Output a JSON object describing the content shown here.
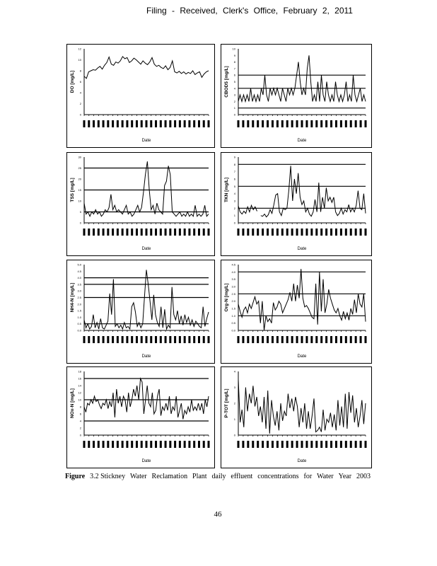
{
  "header": {
    "text": "Filing - Received, Clerk's Office, February 2, 2011"
  },
  "caption": {
    "label": "Figure",
    "words": [
      "3.2 Stickney",
      "Water",
      "Reclamation",
      "Plant",
      "daily",
      "effluent",
      "concentrations",
      "for",
      "Water",
      "Year",
      "2003"
    ]
  },
  "page_number": "46",
  "chart_data": [
    {
      "type": "line",
      "title": "",
      "xlabel": "Date",
      "ylabel": "DO [mg/L]",
      "ylim": [
        0,
        12
      ],
      "yticks": [
        "0",
        "2",
        "4",
        "6",
        "8",
        "10",
        "12"
      ],
      "ref_lines": [],
      "values": [
        7,
        6.6,
        7.8,
        8,
        8.2,
        8.1,
        8.5,
        8.8,
        8.3,
        9,
        9.5,
        10.5,
        9.2,
        9,
        9.6,
        9.4,
        9.8,
        10.6,
        10.2,
        10.4,
        9.5,
        9.8,
        10.3,
        10,
        9.6,
        9.2,
        9.8,
        9.4,
        9.1,
        9.6,
        10.4,
        9.2,
        8.8,
        9,
        8.6,
        8.4,
        8.9,
        8.2,
        8.6,
        9.8,
        7.8,
        7.6,
        7.9,
        7.5,
        7.8,
        7.4,
        7.7,
        7.5,
        8,
        7.3,
        7.6,
        7.8,
        6.8,
        7.4,
        7.8,
        8
      ]
    },
    {
      "type": "line",
      "title": "",
      "xlabel": "Date",
      "ylabel": "CBOD5 [mg/L]",
      "ylim": [
        0,
        10
      ],
      "yticks": [
        "0",
        "1",
        "2",
        "3",
        "4",
        "5",
        "6",
        "7",
        "8",
        "9",
        "10"
      ],
      "ref_lines": [
        1,
        4,
        6
      ],
      "values": [
        2,
        3,
        2,
        3,
        2,
        3,
        2,
        4,
        2,
        3,
        2,
        3,
        2,
        4,
        3,
        6,
        3,
        2,
        4,
        3,
        4,
        3,
        4,
        3,
        2,
        4,
        3,
        2,
        4,
        3,
        4,
        3,
        4,
        6,
        8,
        5,
        3,
        4,
        3,
        7,
        9,
        5,
        2,
        3,
        2,
        5,
        2,
        6,
        3,
        2,
        5,
        3,
        2,
        3,
        2,
        5,
        3,
        2,
        3,
        2,
        3,
        5,
        2,
        3,
        2,
        6,
        3,
        2,
        3,
        4,
        2,
        3,
        2
      ]
    },
    {
      "type": "line",
      "title": "",
      "xlabel": "Date",
      "ylabel": "TSS [mg/L]",
      "ylim": [
        0,
        30
      ],
      "yticks": [
        "0",
        "5",
        "10",
        "15",
        "20",
        "25",
        "30"
      ],
      "ref_lines": [
        5,
        15,
        25
      ],
      "values": [
        9,
        4,
        5,
        3,
        5,
        4,
        6,
        4,
        5,
        3,
        4,
        6,
        5,
        7,
        13,
        6,
        8,
        5,
        6,
        5,
        4,
        6,
        8,
        4,
        5,
        3,
        4,
        6,
        8,
        5,
        7,
        14,
        22,
        28,
        15,
        6,
        8,
        4,
        9,
        6,
        5,
        4,
        17,
        19,
        26,
        22,
        5,
        4,
        3,
        4,
        5,
        3,
        4,
        3,
        5,
        3,
        4,
        3,
        8,
        3,
        4,
        3,
        4,
        8,
        3,
        4
      ]
    },
    {
      "type": "line",
      "title": "",
      "xlabel": "Date",
      "ylabel": "TKN [mg/L]",
      "ylim": [
        0,
        9
      ],
      "yticks": [
        "0",
        "1",
        "2",
        "3",
        "4",
        "5",
        "6",
        "7",
        "8",
        "9"
      ],
      "ref_lines": [
        2,
        5,
        8
      ],
      "values": [
        2.3,
        1.5,
        1.2,
        1.6,
        1.3,
        2.2,
        1.5,
        2.4,
        1.8,
        2.2,
        1.6,
        null,
        1,
        0.9,
        1.2,
        0.8,
        1.1,
        1.8,
        1.3,
        2.5,
        3.8,
        4,
        1.5,
        1,
        2,
        1.8,
        2,
        4.5,
        7.8,
        3,
        6,
        4,
        6.8,
        3.5,
        2.5,
        3,
        1.5,
        2,
        1.2,
        0.9,
        1.5,
        3.2,
        1.5,
        5.5,
        1.5,
        3.5,
        2,
        4.8,
        3,
        3.5,
        2.8,
        3.5,
        1.5,
        1,
        1.3,
        2,
        1.2,
        1.8,
        1.5,
        2.5,
        1.5,
        2,
        1.5,
        2.4,
        4.4,
        2,
        1.8,
        4,
        1.3
      ]
    },
    {
      "type": "line",
      "title": "",
      "xlabel": "Date",
      "ylabel": "NH4-N [mg/L]",
      "ylim": [
        0,
        5
      ],
      "yticks": [
        "0.0",
        "0.5",
        "1.0",
        "1.5",
        "2.0",
        "2.5",
        "3.0",
        "3.5",
        "4.0",
        "4.5",
        "5.0"
      ],
      "ref_lines": [
        0.5,
        2.5,
        3.5,
        4.0
      ],
      "values": [
        0.8,
        0.2,
        0.5,
        0.1,
        0.3,
        1.2,
        0.2,
        0.6,
        0.1,
        0.9,
        0.2,
        0.1,
        0.4,
        0.7,
        2.8,
        1.2,
        3.9,
        0.3,
        0.5,
        0.2,
        0.4,
        0.1,
        0.6,
        0.2,
        0.3,
        0.1,
        1.8,
        2.1,
        1.4,
        0.3,
        0.6,
        0.2,
        0.5,
        2.6,
        4.6,
        3.5,
        2.2,
        0.8,
        2.7,
        1.2,
        0.6,
        0.3,
        1.8,
        0.2,
        1.6,
        0.1,
        0.4,
        0.2,
        3.3,
        1.2,
        0.8,
        1.5,
        0.5,
        1.1,
        0.4,
        1.2,
        0.6,
        1,
        0.4,
        0.8,
        0.3,
        0.7,
        0.5,
        0.3,
        0.2,
        1.8,
        0.3,
        0.9,
        1.4
      ]
    },
    {
      "type": "line",
      "title": "",
      "xlabel": "Date",
      "ylabel": "Org-N [mg/L]",
      "ylim": [
        0,
        4.5
      ],
      "yticks": [
        "0.0",
        "0.5",
        "1.0",
        "1.5",
        "2.0",
        "2.5",
        "3.0",
        "3.5",
        "4.0",
        "4.5"
      ],
      "ref_lines": [
        1.0,
        2.5,
        4.0
      ],
      "values": [
        1.8,
        1.3,
        0.9,
        1.4,
        1.6,
        1.2,
        1.8,
        1.5,
        1.9,
        2.3,
        1.8,
        2,
        0.5,
        2,
        0,
        1,
        0.6,
        0.8,
        0.5,
        1.9,
        1.4,
        1.6,
        2,
        1.8,
        1.2,
        1.5,
        1.8,
        2.1,
        2.6,
        2,
        3.2,
        2,
        3.1,
        2.2,
        4.2,
        2.2,
        1.6,
        1.7,
        1.5,
        1.2,
        0.9,
        0.8,
        3.2,
        0.4,
        4,
        1.3,
        3.5,
        1.2,
        1.8,
        2.8,
        2.2,
        1.8,
        1.4,
        1.2,
        1.5,
        1,
        0.7,
        1.3,
        0.8,
        1.2,
        0.7,
        1.5,
        1.1,
        2.1,
        1.2,
        2.5,
        1.8,
        1.6,
        2.5,
        0.6
      ]
    },
    {
      "type": "line",
      "title": "",
      "xlabel": "Date",
      "ylabel": "NOx-N [mg/L]",
      "ylim": [
        0,
        18
      ],
      "yticks": [
        "0",
        "2",
        "4",
        "6",
        "8",
        "10",
        "12",
        "14",
        "16",
        "18"
      ],
      "ref_lines": [
        4,
        10,
        16
      ],
      "values": [
        8,
        6.5,
        9,
        8.5,
        10,
        9,
        11,
        9.5,
        10,
        8.5,
        7.5,
        9,
        8.5,
        10,
        7.5,
        9.5,
        8,
        12,
        5,
        13,
        9,
        11,
        8,
        11,
        10,
        6.5,
        12,
        8,
        10,
        13,
        11,
        14,
        10,
        16,
        15,
        6,
        10,
        14,
        9,
        8,
        12,
        6,
        7,
        11,
        13,
        5.5,
        8,
        7,
        9,
        7,
        11,
        6,
        8,
        7,
        11,
        5,
        7,
        9,
        4.5,
        7,
        6,
        8,
        6.5,
        10,
        7,
        8,
        7,
        9,
        7,
        9,
        6,
        10,
        8,
        11
      ]
    },
    {
      "type": "line",
      "title": "",
      "xlabel": "Date",
      "ylabel": "P-TOT [mg/L]",
      "ylim": [
        0,
        4
      ],
      "yticks": [
        "0",
        "1",
        "2",
        "3",
        "4"
      ],
      "ref_lines": [],
      "values": [
        3.5,
        0.8,
        1.6,
        0.5,
        3,
        1.5,
        2.6,
        2,
        3.1,
        1.8,
        2.4,
        1.2,
        1.8,
        0.8,
        2.4,
        0.4,
        2.8,
        0.1,
        2.2,
        1.2,
        0.6,
        1.5,
        0.3,
        2,
        0.9,
        1.5,
        1.2,
        2.6,
        1.7,
        2.3,
        1.5,
        2.4,
        1.8,
        0.5,
        1.7,
        0.8,
        2,
        0.4,
        1.5,
        0.4,
        1.2,
        2.3,
        0.2,
        0.3,
        0.5,
        0.2,
        1.6,
        0.3,
        1,
        0.8,
        1.4,
        0.5,
        1.3,
        0.3,
        2.2,
        0.6,
        1.8,
        0.5,
        2.6,
        0.4,
        2.7,
        1.4,
        2.5,
        0.8,
        1.7,
        0.5,
        1.2,
        2.2,
        0.7,
        2
      ]
    }
  ]
}
